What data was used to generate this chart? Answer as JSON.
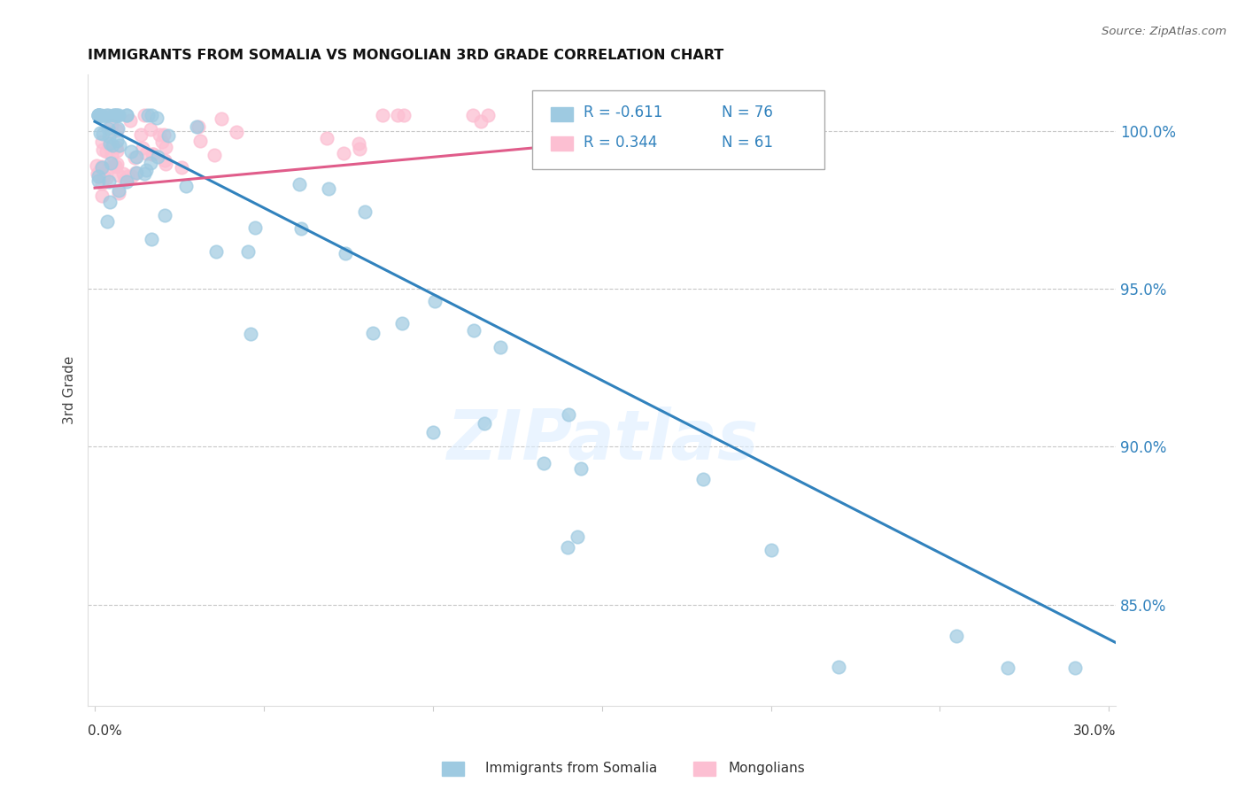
{
  "title": "IMMIGRANTS FROM SOMALIA VS MONGOLIAN 3RD GRADE CORRELATION CHART",
  "source": "Source: ZipAtlas.com",
  "ylabel": "3rd Grade",
  "ytick_labels": [
    "100.0%",
    "95.0%",
    "90.0%",
    "85.0%"
  ],
  "ytick_values": [
    1.0,
    0.95,
    0.9,
    0.85
  ],
  "xlim": [
    -0.002,
    0.302
  ],
  "ylim": [
    0.818,
    1.018
  ],
  "background_color": "#ffffff",
  "grid_color": "#c8c8c8",
  "legend_R1": "R = -0.611",
  "legend_N1": "N = 76",
  "legend_R2": "R = 0.344",
  "legend_N2": "N = 61",
  "blue_color": "#9ecae1",
  "pink_color": "#fcbfd2",
  "blue_line_color": "#3182bd",
  "pink_line_color": "#e05c8a",
  "blue_text_color": "#3182bd",
  "watermark": "ZIPatlas",
  "blue_line_x": [
    0.0,
    0.302
  ],
  "blue_line_y": [
    1.003,
    0.838
  ],
  "pink_line_x": [
    0.0,
    0.215
  ],
  "pink_line_y": [
    0.982,
    1.003
  ]
}
